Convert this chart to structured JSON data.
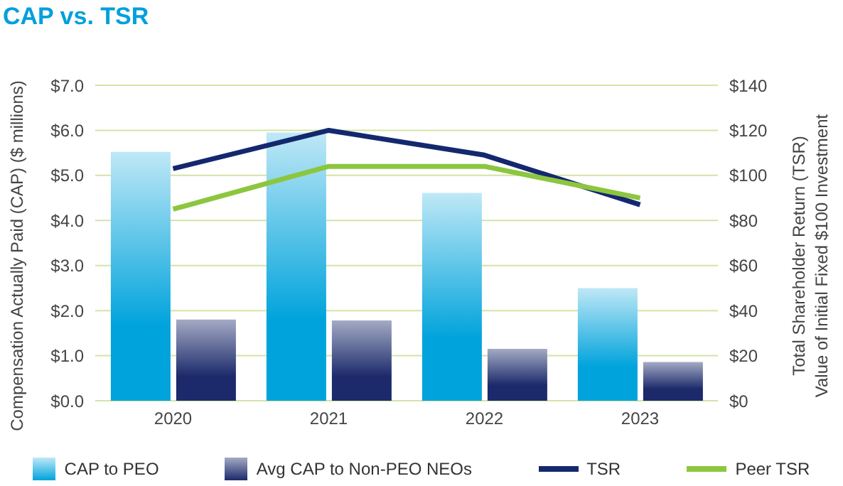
{
  "chart_data": {
    "type": "bar",
    "title": "CAP vs. TSR",
    "categories": [
      "2020",
      "2021",
      "2022",
      "2023"
    ],
    "ylabel": "Compensation Actually Paid (CAP) ($ millions)",
    "y2label": "Total Shareholder Return (TSR)\nValue of Initial Fixed $100 Investment",
    "series": [
      {
        "name": "CAP to PEO",
        "color": "#00a3dc",
        "values": [
          5.52,
          5.95,
          4.61,
          2.5
        ]
      },
      {
        "name": "Avg CAP to Non-PEO NEOs",
        "color": "#1c2a6b",
        "values": [
          1.8,
          1.78,
          1.15,
          0.86
        ]
      },
      {
        "name": "TSR",
        "type": "line",
        "axis": "y2",
        "color": "#14286e",
        "values": [
          103,
          120,
          109,
          87
        ]
      },
      {
        "name": "Peer TSR",
        "type": "line",
        "axis": "y2",
        "color": "#8cc63f",
        "values": [
          85,
          104,
          104,
          90
        ]
      }
    ],
    "ylim": [
      0,
      7
    ],
    "yticks": [
      {
        "value": 0,
        "label": "$0.0"
      },
      {
        "value": 1,
        "label": "$1.0"
      },
      {
        "value": 2,
        "label": "$2.0"
      },
      {
        "value": 3,
        "label": "$3.0"
      },
      {
        "value": 4,
        "label": "$4.0"
      },
      {
        "value": 5,
        "label": "$5.0"
      },
      {
        "value": 6,
        "label": "$6.0"
      },
      {
        "value": 7,
        "label": "$7.0"
      }
    ],
    "y2lim": [
      0,
      140
    ],
    "y2ticks": [
      {
        "value": 0,
        "label": "$0"
      },
      {
        "value": 20,
        "label": "$20"
      },
      {
        "value": 40,
        "label": "$40"
      },
      {
        "value": 60,
        "label": "$60"
      },
      {
        "value": 80,
        "label": "$80"
      },
      {
        "value": 100,
        "label": "$100"
      },
      {
        "value": 120,
        "label": "$120"
      },
      {
        "value": 140,
        "label": "$140"
      }
    ],
    "grid": "y",
    "legend": "bottom"
  }
}
